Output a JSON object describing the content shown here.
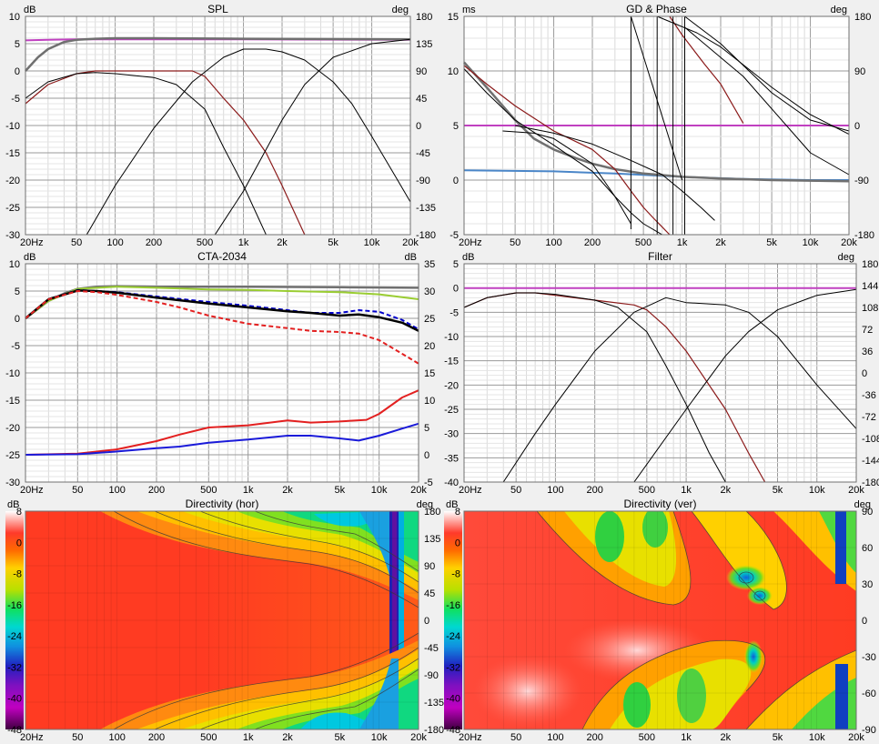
{
  "chart_data": [
    {
      "type": "line",
      "title": "SPL",
      "ylabel": "dB",
      "y2label": "deg",
      "xscale": "log",
      "xlim": [
        20,
        20000
      ],
      "ylim": [
        -30,
        10
      ],
      "y2lim": [
        -180,
        180
      ],
      "x_ticks": [
        "20Hz",
        "50",
        "100",
        "200",
        "500",
        "1k",
        "2k",
        "5k",
        "10k",
        "20k"
      ],
      "y_ticks": [
        "10",
        "5",
        "0",
        "-5",
        "-10",
        "-15",
        "-20",
        "-25",
        "-30"
      ],
      "y2_ticks": [
        "180",
        "135",
        "90",
        "45",
        "0",
        "-45",
        "-90",
        "-135",
        "-180"
      ],
      "grid": true,
      "series": [
        {
          "color": "#c040c0",
          "width": 2,
          "x": [
            20,
            30,
            50,
            100,
            1000,
            20000
          ],
          "y": [
            5.6,
            5.7,
            5.8,
            5.8,
            5.8,
            5.7
          ]
        },
        {
          "color": "#707070",
          "width": 2.5,
          "x": [
            20,
            25,
            30,
            40,
            50,
            70,
            100,
            200,
            1000,
            20000
          ],
          "y": [
            0,
            2.5,
            4,
            5.3,
            5.7,
            5.9,
            6.0,
            6.0,
            5.9,
            5.8
          ]
        },
        {
          "color": "#8b1a1a",
          "width": 1.2,
          "x": [
            20,
            30,
            50,
            70,
            100,
            200,
            400,
            500,
            700,
            1000,
            1500,
            2000,
            3000
          ],
          "y": [
            -6,
            -2.5,
            -0.5,
            0,
            0,
            0,
            0,
            -1,
            -5,
            -9,
            -15,
            -21,
            -30
          ]
        },
        {
          "color": "#000000",
          "width": 1,
          "x": [
            20,
            30,
            50,
            70,
            100,
            200,
            300,
            500,
            700,
            1000,
            1500
          ],
          "y": [
            -5,
            -2,
            -0.5,
            -0.3,
            -0.5,
            -1.2,
            -2.5,
            -7,
            -14,
            -21,
            -30
          ]
        },
        {
          "color": "#000000",
          "width": 1,
          "x": [
            60,
            100,
            200,
            400,
            700,
            1000,
            1500,
            2000,
            3000,
            5000,
            7000,
            10000,
            15000,
            20000
          ],
          "y": [
            -30,
            -21,
            -10.5,
            -2,
            2.5,
            4,
            4,
            3.5,
            2,
            -2,
            -6,
            -12,
            -19,
            -24
          ]
        },
        {
          "color": "#000000",
          "width": 1,
          "x": [
            600,
            1000,
            2000,
            3000,
            5000,
            10000,
            20000
          ],
          "y": [
            -30,
            -22,
            -9,
            -2.5,
            2.5,
            5,
            5.8
          ]
        }
      ]
    },
    {
      "type": "line",
      "title": "GD & Phase",
      "ylabel": "ms",
      "y2label": "deg",
      "xscale": "log",
      "xlim": [
        20,
        20000
      ],
      "ylim": [
        -5,
        15
      ],
      "y2lim": [
        -180,
        180
      ],
      "x_ticks": [
        "20Hz",
        "50",
        "100",
        "200",
        "500",
        "1k",
        "2k",
        "5k",
        "10k",
        "20k"
      ],
      "y_ticks": [
        "15",
        "10",
        "5",
        "0",
        "-5"
      ],
      "y2_ticks": [
        "180",
        "90",
        "0",
        "-90",
        "-180"
      ],
      "grid": true,
      "series": [
        {
          "color": "#c040c0",
          "width": 2,
          "x": [
            20,
            20000
          ],
          "y": [
            5,
            5
          ]
        },
        {
          "color": "#4a86c8",
          "width": 2,
          "x": [
            20,
            100,
            300,
            1000,
            3000,
            10000,
            20000
          ],
          "y": [
            0.9,
            0.8,
            0.6,
            0.3,
            0.1,
            0,
            0
          ]
        },
        {
          "color": "#707070",
          "width": 2.5,
          "x": [
            20,
            30,
            50,
            70,
            100,
            150,
            200,
            300,
            500,
            1000,
            2000,
            5000,
            20000
          ],
          "y": [
            10.8,
            8.5,
            5.5,
            3.8,
            2.8,
            2.0,
            1.5,
            1.0,
            0.6,
            0.3,
            0.15,
            0,
            -0.1
          ]
        },
        {
          "color": "#8b1a1a",
          "width": 1.2,
          "x": [
            20,
            30,
            50,
            100,
            200,
            300,
            400,
            500,
            600,
            700,
            800
          ],
          "y": [
            10.5,
            8.8,
            6.8,
            4.5,
            2.8,
            1.0,
            -1.0,
            -2.5,
            -3.5,
            -4.3,
            -5
          ]
        },
        {
          "color": "#8b1a1a",
          "width": 1.2,
          "x": [
            800,
            1000,
            1500,
            2000,
            3000
          ],
          "y": [
            15,
            13.3,
            10.6,
            8.8,
            5.2
          ]
        },
        {
          "color": "#000000",
          "width": 1,
          "x": [
            20,
            30,
            50,
            100,
            200,
            300,
            400,
            500,
            700
          ],
          "y": [
            10.2,
            8.0,
            5.5,
            3.2,
            0.8,
            -1.5,
            -3,
            -4,
            -5
          ]
        },
        {
          "color": "#000000",
          "width": 1,
          "x": [
            40,
            70,
            100,
            200,
            300,
            400
          ],
          "y": [
            4.5,
            4.3,
            3.8,
            1.5,
            -1.5,
            -4
          ]
        },
        {
          "color": "#000000",
          "width": 1,
          "x": [
            50,
            100,
            200,
            400,
            700,
            1000,
            1400,
            1800
          ],
          "y": [
            5,
            4.3,
            3.3,
            1.8,
            0.5,
            -1.0,
            -2.5,
            -3.7
          ]
        },
        {
          "color": "#000000",
          "width": 1,
          "x": [
            400,
            400
          ],
          "y": [
            -4.5,
            15
          ]
        },
        {
          "color": "#000000",
          "width": 1,
          "x": [
            400,
            1000
          ],
          "y": [
            15,
            0
          ]
        },
        {
          "color": "#000000",
          "width": 1,
          "x": [
            640,
            640
          ],
          "y": [
            -5,
            15
          ]
        },
        {
          "color": "#000000",
          "width": 1,
          "x": [
            640,
            1300,
            2000,
            5000,
            10000,
            20000
          ],
          "y": [
            15,
            13.5,
            12.2,
            8.5,
            6,
            4.2
          ]
        },
        {
          "color": "#000000",
          "width": 1,
          "x": [
            850,
            850
          ],
          "y": [
            -5,
            15
          ]
        },
        {
          "color": "#000000",
          "width": 1,
          "x": [
            1050,
            1050
          ],
          "y": [
            -5,
            15
          ]
        },
        {
          "color": "#000000",
          "width": 1,
          "x": [
            1050,
            2000,
            5000,
            10000,
            20000
          ],
          "y": [
            15,
            12.5,
            8,
            5.5,
            4.5
          ]
        },
        {
          "color": "#000000",
          "width": 1,
          "x": [
            1050,
            3000,
            10000,
            20000
          ],
          "y": [
            14,
            9.5,
            2.5,
            0.5
          ]
        }
      ]
    },
    {
      "type": "line",
      "title": "CTA-2034",
      "ylabel": "dB",
      "y2label": "dB",
      "xscale": "log",
      "xlim": [
        20,
        20000
      ],
      "ylim": [
        -30,
        10
      ],
      "y2lim": [
        -5,
        35
      ],
      "x_ticks": [
        "20Hz",
        "50",
        "100",
        "200",
        "500",
        "1k",
        "2k",
        "5k",
        "10k",
        "20k"
      ],
      "y_ticks": [
        "10",
        "5",
        "0",
        "-5",
        "-10",
        "-15",
        "-20",
        "-25",
        "-30"
      ],
      "y2_ticks": [
        "35",
        "30",
        "25",
        "20",
        "15",
        "10",
        "5",
        "0",
        "-5"
      ],
      "grid": true,
      "series": [
        {
          "color": "#707070",
          "width": 2.5,
          "x": [
            20,
            30,
            40,
            50,
            70,
            100,
            200,
            1000,
            5000,
            20000
          ],
          "y": [
            0,
            3.2,
            4.6,
            5.4,
            5.8,
            5.9,
            5.8,
            5.8,
            5.7,
            5.6
          ]
        },
        {
          "color": "#9acd32",
          "width": 2,
          "x": [
            20,
            30,
            50,
            100,
            200,
            500,
            1000,
            2000,
            5000,
            10000,
            20000
          ],
          "y": [
            0,
            3.2,
            5.4,
            5.8,
            5.6,
            5.3,
            5.2,
            5.0,
            4.8,
            4.4,
            3.5
          ]
        },
        {
          "color": "#0000cc",
          "width": 2,
          "dash": "5,3",
          "x": [
            20,
            30,
            50,
            70,
            100,
            200,
            500,
            1000,
            2000,
            3000,
            5000,
            7000,
            10000,
            15000,
            20000
          ],
          "y": [
            0,
            3.5,
            5.2,
            5.0,
            4.8,
            4.0,
            3.0,
            2.3,
            1.5,
            1.0,
            1.0,
            1.5,
            1.2,
            -0.3,
            -2
          ]
        },
        {
          "color": "#000000",
          "width": 2.5,
          "x": [
            20,
            30,
            50,
            70,
            100,
            200,
            500,
            1000,
            2000,
            3000,
            5000,
            7000,
            10000,
            15000,
            20000
          ],
          "y": [
            0,
            3.5,
            5.1,
            5.0,
            4.7,
            3.8,
            2.7,
            2.0,
            1.3,
            1.0,
            0.5,
            0.7,
            0.2,
            -0.8,
            -2.3
          ]
        },
        {
          "color": "#e32020",
          "width": 2,
          "dash": "5,3",
          "x": [
            20,
            30,
            50,
            70,
            100,
            200,
            300,
            500,
            1000,
            2000,
            3000,
            5000,
            7000,
            10000,
            15000,
            20000
          ],
          "y": [
            0,
            3.5,
            5.0,
            4.8,
            4.3,
            3.0,
            2.0,
            0.5,
            -1.0,
            -1.8,
            -2.3,
            -2.5,
            -2.8,
            -4,
            -6.5,
            -8.3
          ]
        },
        {
          "color": "#e32020",
          "width": 2,
          "x": [
            20,
            50,
            100,
            200,
            300,
            500,
            1000,
            2000,
            3000,
            5000,
            8000,
            10000,
            15000,
            20000
          ],
          "y": [
            -25,
            -24.8,
            -24,
            -22.5,
            -21.3,
            -20.0,
            -19.6,
            -18.7,
            -19.1,
            -18.9,
            -18.6,
            -17.5,
            -14.5,
            -13.2
          ]
        },
        {
          "color": "#1a1ad9",
          "width": 2,
          "x": [
            20,
            50,
            100,
            200,
            300,
            500,
            1000,
            2000,
            3000,
            5000,
            7000,
            10000,
            15000,
            20000
          ],
          "y": [
            -25,
            -24.9,
            -24.4,
            -23.8,
            -23.5,
            -22.8,
            -22.2,
            -21.5,
            -21.5,
            -22.0,
            -22.4,
            -21.5,
            -20.2,
            -19.3
          ]
        }
      ]
    },
    {
      "type": "line",
      "title": "Filter",
      "ylabel": "dB",
      "y2label": "deg",
      "xscale": "log",
      "xlim": [
        20,
        20000
      ],
      "ylim": [
        -40,
        5
      ],
      "y2lim": [
        -180,
        180
      ],
      "x_ticks": [
        "20Hz",
        "50",
        "100",
        "200",
        "500",
        "1k",
        "2k",
        "5k",
        "10k",
        "20k"
      ],
      "y_ticks": [
        "5",
        "0",
        "-5",
        "-10",
        "-15",
        "-20",
        "-25",
        "-30",
        "-35",
        "-40"
      ],
      "y2_ticks": [
        "180",
        "144",
        "108",
        "72",
        "36",
        "0",
        "-36",
        "-72",
        "-108",
        "-144",
        "-180"
      ],
      "grid": true,
      "series": [
        {
          "color": "#c040c0",
          "width": 2,
          "x": [
            20,
            20000
          ],
          "y": [
            0,
            0
          ]
        },
        {
          "color": "#8b1a1a",
          "width": 1.2,
          "x": [
            20,
            30,
            50,
            70,
            100,
            200,
            400,
            500,
            700,
            1000,
            2000,
            3000,
            4000
          ],
          "y": [
            -4,
            -2,
            -1,
            -1,
            -1.5,
            -2.5,
            -3.5,
            -4.5,
            -8,
            -13,
            -25,
            -34,
            -40
          ]
        },
        {
          "color": "#000000",
          "width": 1,
          "x": [
            20,
            30,
            50,
            70,
            100,
            200,
            300,
            500,
            700,
            1000,
            1500,
            2000
          ],
          "y": [
            -4,
            -2,
            -1,
            -1,
            -1.3,
            -2.5,
            -4,
            -9,
            -16,
            -24,
            -34,
            -40
          ]
        },
        {
          "color": "#000000",
          "width": 1,
          "x": [
            40,
            70,
            100,
            200,
            400,
            700,
            1000,
            2000,
            3000,
            5000,
            10000,
            20000
          ],
          "y": [
            -40,
            -30,
            -24,
            -13,
            -5,
            -2,
            -3,
            -3.5,
            -5,
            -10,
            -20,
            -29
          ]
        },
        {
          "color": "#000000",
          "width": 1,
          "x": [
            400,
            1000,
            2000,
            3000,
            5000,
            10000,
            20000
          ],
          "y": [
            -40,
            -25,
            -14,
            -9,
            -4.5,
            -1.5,
            -0.3
          ]
        }
      ]
    },
    {
      "type": "heatmap",
      "title": "Directivity (hor)",
      "ylabel": "dB",
      "y2label": "deg",
      "xscale": "log",
      "xlim": [
        20,
        20000
      ],
      "ylim": [
        -180,
        180
      ],
      "colorbar": {
        "min": -48,
        "max": 8,
        "ticks": [
          "8",
          "0",
          "-8",
          "-16",
          "-24",
          "-32",
          "-40",
          "-48"
        ]
      },
      "x_ticks": [
        "20Hz",
        "50",
        "100",
        "200",
        "500",
        "1k",
        "2k",
        "5k",
        "10k",
        "20k"
      ],
      "y2_ticks": [
        "180",
        "135",
        "90",
        "45",
        "0",
        "-45",
        "-90",
        "-135",
        "-180"
      ]
    },
    {
      "type": "heatmap",
      "title": "Directivity (ver)",
      "ylabel": "dB",
      "y2label": "deg",
      "xscale": "log",
      "xlim": [
        20,
        20000
      ],
      "ylim": [
        -90,
        90
      ],
      "colorbar": {
        "min": -48,
        "max": 8,
        "ticks": [
          "8",
          "0",
          "-8",
          "-16",
          "-24",
          "-32",
          "-40",
          "-48"
        ]
      },
      "x_ticks": [
        "20Hz",
        "50",
        "100",
        "200",
        "500",
        "1k",
        "2k",
        "5k",
        "10k",
        "20k"
      ],
      "y2_ticks": [
        "90",
        "60",
        "30",
        "0",
        "-30",
        "-60",
        "-90"
      ]
    }
  ]
}
